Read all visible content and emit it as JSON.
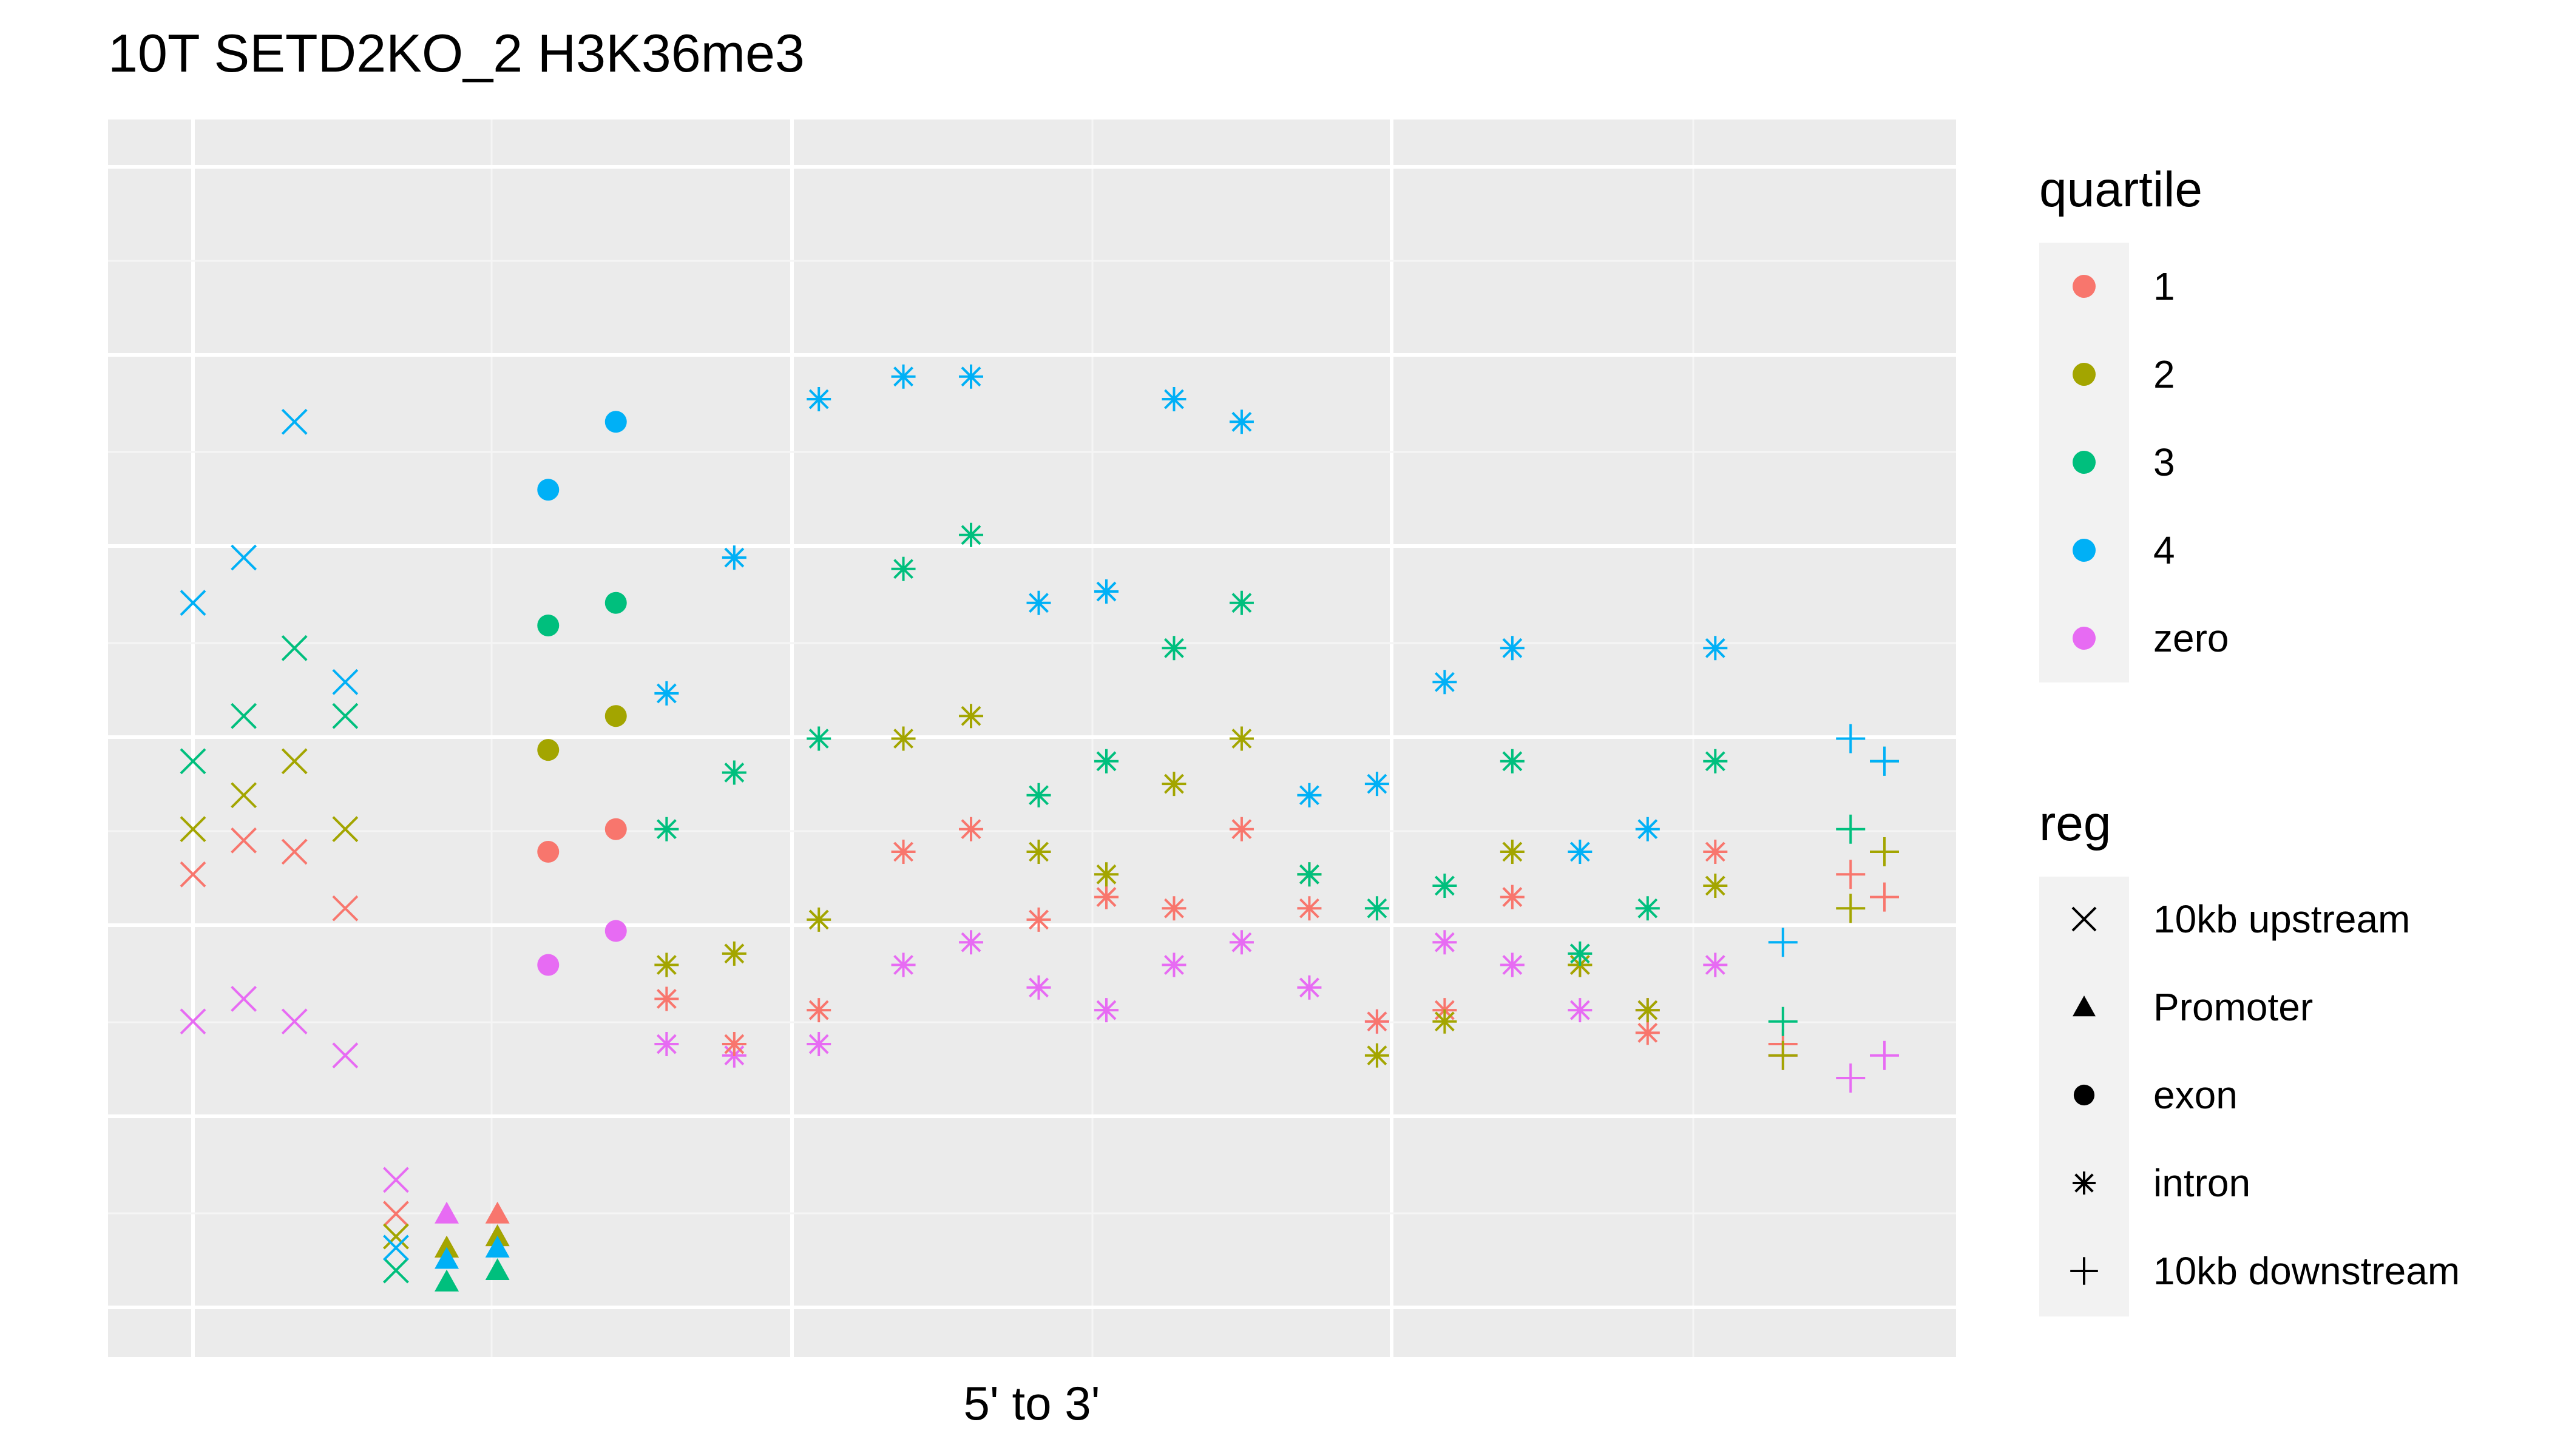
{
  "chart_data": {
    "type": "scatter",
    "title": "10T SETD2KO_2 H3K36me3",
    "xlabel": "5' to 3'",
    "ylabel": "",
    "x_tick_labels_shown": false,
    "y_tick_labels_shown": false,
    "grid": true,
    "panel_background": "#EBEBEB",
    "x_range": [
      0,
      1000
    ],
    "y_range": [
      0,
      100
    ],
    "legend_placement": "right",
    "regions": [
      {
        "name": "10kb upstream",
        "shape": "x",
        "x": [
          0,
          125
        ]
      },
      {
        "name": "Promoter",
        "shape": "triangle",
        "x": [
          125,
          200
        ]
      },
      {
        "name": "exon",
        "shape": "circle",
        "x": [
          200,
          250
        ]
      },
      {
        "name": "intron",
        "shape": "asterisk",
        "x": [
          250,
          900
        ]
      },
      {
        "name": "10kb downstream",
        "shape": "plus",
        "x": [
          900,
          1000
        ]
      }
    ],
    "color_legend": {
      "title": "quartile",
      "entries": [
        {
          "name": "1",
          "color": "#F8766D"
        },
        {
          "name": "2",
          "color": "#A3A500"
        },
        {
          "name": "3",
          "color": "#00BF7D"
        },
        {
          "name": "4",
          "color": "#00B0F6"
        },
        {
          "name": "zero",
          "color": "#E76BF3"
        }
      ]
    },
    "shape_legend": {
      "title": "reg",
      "entries": [
        {
          "name": "10kb upstream",
          "shape": "x"
        },
        {
          "name": "Promoter",
          "shape": "triangle"
        },
        {
          "name": "exon",
          "shape": "circle"
        },
        {
          "name": "intron",
          "shape": "asterisk"
        },
        {
          "name": "10kb downstream",
          "shape": "plus"
        }
      ]
    },
    "series": [
      {
        "name": "zero",
        "color": "#E76BF3",
        "x": [
          0,
          30,
          60,
          90,
          120,
          150,
          180,
          210,
          250,
          280,
          320,
          370,
          420,
          460,
          500,
          540,
          580,
          620,
          660,
          700,
          740,
          780,
          820,
          860,
          900,
          940,
          980,
          1000
        ],
        "y": [
          25,
          27,
          25,
          22,
          11,
          8,
          6,
          30,
          33,
          23,
          22,
          23,
          30,
          32,
          28,
          26,
          30,
          32,
          28,
          25,
          32,
          30,
          26,
          26,
          30,
          22,
          20,
          22
        ]
      },
      {
        "name": "1",
        "color": "#F8766D",
        "x": [
          0,
          30,
          60,
          90,
          120,
          150,
          180,
          210,
          250,
          280,
          320,
          370,
          420,
          460,
          500,
          540,
          580,
          620,
          660,
          700,
          740,
          780,
          820,
          860,
          900,
          940,
          980,
          1000
        ],
        "y": [
          38,
          41,
          40,
          35,
          8,
          5,
          8,
          40,
          42,
          27,
          23,
          26,
          40,
          42,
          34,
          36,
          35,
          42,
          35,
          25,
          26,
          36,
          30,
          24,
          40,
          23,
          38,
          36
        ]
      },
      {
        "name": "2",
        "color": "#A3A500",
        "x": [
          0,
          30,
          60,
          90,
          120,
          150,
          180,
          210,
          250,
          280,
          320,
          370,
          420,
          460,
          500,
          540,
          580,
          620,
          660,
          700,
          740,
          780,
          820,
          860,
          900,
          940,
          980,
          1000
        ],
        "y": [
          42,
          45,
          48,
          42,
          6,
          5,
          6,
          49,
          52,
          30,
          31,
          34,
          50,
          52,
          40,
          38,
          46,
          50,
          38,
          22,
          25,
          40,
          30,
          26,
          37,
          22,
          35,
          40
        ]
      },
      {
        "name": "3",
        "color": "#00BF7D",
        "x": [
          0,
          30,
          60,
          90,
          120,
          150,
          180,
          210,
          250,
          280,
          320,
          370,
          420,
          460,
          500,
          540,
          580,
          620,
          660,
          700,
          740,
          780,
          820,
          860,
          900,
          940,
          980,
          1000
        ],
        "y": [
          48,
          52,
          58,
          52,
          3,
          2,
          3,
          60,
          62,
          42,
          47,
          50,
          65,
          68,
          45,
          48,
          58,
          62,
          38,
          35,
          37,
          48,
          31,
          35,
          48,
          25,
          42,
          48
        ]
      },
      {
        "name": "4",
        "color": "#00B0F6",
        "x": [
          0,
          30,
          60,
          90,
          120,
          150,
          180,
          210,
          250,
          280,
          320,
          370,
          420,
          460,
          500,
          540,
          580,
          620,
          660,
          700,
          740,
          780,
          820,
          860,
          900,
          940,
          980,
          1000
        ],
        "y": [
          62,
          66,
          78,
          55,
          5,
          4,
          5,
          72,
          78,
          54,
          66,
          80,
          82,
          82,
          62,
          63,
          80,
          78,
          45,
          46,
          55,
          58,
          40,
          42,
          58,
          32,
          50,
          48
        ]
      }
    ]
  }
}
